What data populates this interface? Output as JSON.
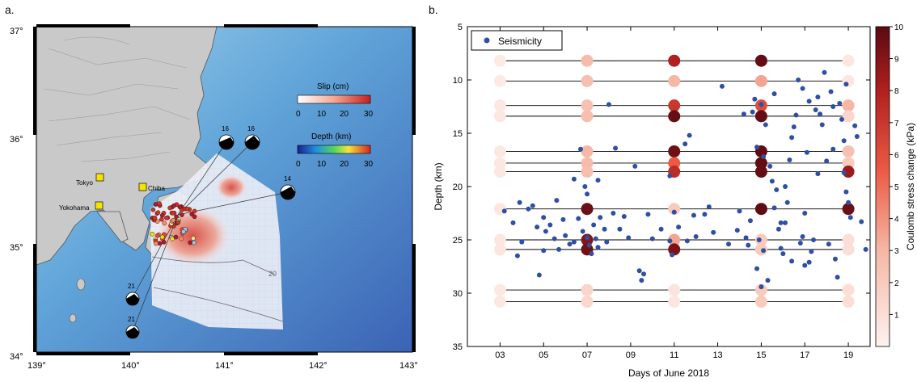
{
  "panel_a": {
    "label": "a.",
    "lon_ticks": [
      "139°",
      "140°",
      "141°",
      "142°",
      "143°"
    ],
    "lat_ticks": [
      "37°",
      "36°",
      "35°",
      "34°"
    ],
    "slip_legend": {
      "title": "Slip (cm)",
      "ticks": [
        "0",
        "10",
        "20",
        "30"
      ]
    },
    "depth_legend": {
      "title": "Depth (km)",
      "ticks": [
        "0",
        "10",
        "20",
        "30"
      ]
    },
    "cities": [
      "Tokyo",
      "Chiba",
      "Yokohama"
    ],
    "mechanism_labels": [
      "16",
      "16",
      "14",
      "21",
      "21"
    ],
    "contour_label": "20"
  },
  "panel_b": {
    "label": "b.",
    "legend_label": "Seismicity",
    "colorbar_label": "Coulomb stress change (kPa)",
    "colorbar_ticks": [
      "1",
      "2",
      "3",
      "4",
      "5",
      "6",
      "7",
      "8",
      "9",
      "10"
    ],
    "colors": {
      "low": "#fbe9e4",
      "mid": "#f0725a",
      "high": "#6a0d14",
      "dots": "#2f4fa3"
    }
  },
  "chart_data": {
    "type": "scatter",
    "xlabel": "Days of June 2018",
    "ylabel": "Depth (km)",
    "xlim": [
      1.5,
      20
    ],
    "ylim": [
      35,
      5
    ],
    "x_ticks": [
      "03",
      "05",
      "07",
      "09",
      "11",
      "13",
      "15",
      "17",
      "19"
    ],
    "y_ticks": [
      "5",
      "10",
      "15",
      "20",
      "25",
      "30",
      "35"
    ],
    "clim": [
      0,
      10
    ],
    "fault_depths": [
      8.2,
      10.1,
      12.4,
      13.4,
      16.7,
      17.8,
      18.6,
      22.1,
      25.0,
      25.9,
      29.7,
      30.8
    ],
    "stress_series": [
      {
        "day": 3,
        "values": [
          0.4,
          0.4,
          0.5,
          0.5,
          0.5,
          0.5,
          0.5,
          0.6,
          0.6,
          0.6,
          0.5,
          0.5
        ]
      },
      {
        "day": 7,
        "values": [
          2.8,
          2.6,
          2.5,
          2.6,
          3.0,
          2.8,
          2.6,
          9.6,
          9.0,
          9.5,
          1.5,
          1.4
        ]
      },
      {
        "day": 11,
        "values": [
          8.0,
          3.0,
          7.0,
          9.7,
          9.5,
          5.5,
          7.5,
          2.0,
          3.5,
          9.2,
          0.7,
          0.6
        ]
      },
      {
        "day": 15,
        "values": [
          9.8,
          3.5,
          6.0,
          9.8,
          9.8,
          9.8,
          9.7,
          9.9,
          2.0,
          2.0,
          2.0,
          2.0
        ]
      },
      {
        "day": 19,
        "values": [
          0.6,
          0.6,
          3.0,
          1.5,
          2.5,
          2.0,
          8.5,
          9.6,
          1.0,
          1.0,
          1.0,
          1.0
        ]
      }
    ],
    "seismicity": {
      "name": "Seismicity",
      "points": [
        [
          2.3,
          6.0
        ],
        [
          2.2,
          7.0
        ],
        [
          2.6,
          6.5
        ],
        [
          3.2,
          22.3
        ],
        [
          3.6,
          23.4
        ],
        [
          3.9,
          21.5
        ],
        [
          4.0,
          25.2
        ],
        [
          3.8,
          26.5
        ],
        [
          4.3,
          22.1
        ],
        [
          4.5,
          21.8
        ],
        [
          4.7,
          23.8
        ],
        [
          5.0,
          22.9
        ],
        [
          5.1,
          24.2
        ],
        [
          5.3,
          23.6
        ],
        [
          5.0,
          26.0
        ],
        [
          5.5,
          24.9
        ],
        [
          5.6,
          21.3
        ],
        [
          5.9,
          23.1
        ],
        [
          6.0,
          24.6
        ],
        [
          6.2,
          25.4
        ],
        [
          6.4,
          19.3
        ],
        [
          6.6,
          23.0
        ],
        [
          6.8,
          24.2
        ],
        [
          6.9,
          20.0
        ],
        [
          7.0,
          24.8
        ],
        [
          7.1,
          25.5
        ],
        [
          7.2,
          26.3
        ],
        [
          7.3,
          23.6
        ],
        [
          7.4,
          24.9
        ],
        [
          7.5,
          25.7
        ],
        [
          7.6,
          22.9
        ],
        [
          7.8,
          24.0
        ],
        [
          7.9,
          25.2
        ],
        [
          8.0,
          12.3
        ],
        [
          8.2,
          22.5
        ],
        [
          8.5,
          24.0
        ],
        [
          6.7,
          16.5
        ],
        [
          7.5,
          19.4
        ],
        [
          7.0,
          20.7
        ],
        [
          9.4,
          27.9
        ],
        [
          9.6,
          28.2
        ],
        [
          9.5,
          28.8
        ],
        [
          9.8,
          22.6
        ],
        [
          10.0,
          24.9
        ],
        [
          10.4,
          24.0
        ],
        [
          10.8,
          25.1
        ],
        [
          11.0,
          22.4
        ],
        [
          11.2,
          23.8
        ],
        [
          11.5,
          16.0
        ],
        [
          11.7,
          15.2
        ],
        [
          11.6,
          25.1
        ],
        [
          12.4,
          22.6
        ],
        [
          12.8,
          24.3
        ],
        [
          13.2,
          10.6
        ],
        [
          13.5,
          25.4
        ],
        [
          14.0,
          22.3
        ],
        [
          14.3,
          24.8
        ],
        [
          14.5,
          23.2
        ],
        [
          14.6,
          13.0
        ],
        [
          14.7,
          11.8
        ],
        [
          14.8,
          16.3
        ],
        [
          15.0,
          12.3
        ],
        [
          15.2,
          14.2
        ],
        [
          15.4,
          18.1
        ],
        [
          15.5,
          19.5
        ],
        [
          15.6,
          22.0
        ],
        [
          15.7,
          20.3
        ],
        [
          15.8,
          24.0
        ],
        [
          15.9,
          25.8
        ],
        [
          16.0,
          26.3
        ],
        [
          16.1,
          23.4
        ],
        [
          16.2,
          21.5
        ],
        [
          16.3,
          17.5
        ],
        [
          16.4,
          15.4
        ],
        [
          16.5,
          14.4
        ],
        [
          16.6,
          13.3
        ],
        [
          16.7,
          10.0
        ],
        [
          16.8,
          25.3
        ],
        [
          16.9,
          24.7
        ],
        [
          17.0,
          22.5
        ],
        [
          17.1,
          16.8
        ],
        [
          17.2,
          27.1
        ],
        [
          17.3,
          26.1
        ],
        [
          17.4,
          25.0
        ],
        [
          17.5,
          12.8
        ],
        [
          17.6,
          11.6
        ],
        [
          17.7,
          13.2
        ],
        [
          17.8,
          14.2
        ],
        [
          17.9,
          9.3
        ],
        [
          18.0,
          17.6
        ],
        [
          18.1,
          25.4
        ],
        [
          18.2,
          11.1
        ],
        [
          18.3,
          16.5
        ],
        [
          18.4,
          26.8
        ],
        [
          18.5,
          28.5
        ],
        [
          18.6,
          12.2
        ],
        [
          18.7,
          13.7
        ],
        [
          18.8,
          15.7
        ],
        [
          18.9,
          20.5
        ],
        [
          19.0,
          21.5
        ],
        [
          19.1,
          22.9
        ],
        [
          19.3,
          14.3
        ],
        [
          19.4,
          15.3
        ],
        [
          19.6,
          23.3
        ],
        [
          19.8,
          25.9
        ],
        [
          14.8,
          27.7
        ],
        [
          15.0,
          29.4
        ],
        [
          15.3,
          28.8
        ],
        [
          14.9,
          25.0
        ],
        [
          15.1,
          26.0
        ],
        [
          16.4,
          27.0
        ],
        [
          17.0,
          27.4
        ],
        [
          15.9,
          23.4
        ],
        [
          14.4,
          25.5
        ],
        [
          13.9,
          24.1
        ],
        [
          12.0,
          24.7
        ],
        [
          11.9,
          22.7
        ],
        [
          10.9,
          26.4
        ],
        [
          8.9,
          24.8
        ],
        [
          8.7,
          22.8
        ],
        [
          6.4,
          25.2
        ],
        [
          5.7,
          25.9
        ],
        [
          4.8,
          28.3
        ],
        [
          9.2,
          18.1
        ],
        [
          8.3,
          16.4
        ],
        [
          10.8,
          19.0
        ],
        [
          12.6,
          21.9
        ],
        [
          16.1,
          20.0
        ],
        [
          17.6,
          18.8
        ],
        [
          18.8,
          18.7
        ],
        [
          15.6,
          11.3
        ],
        [
          16.9,
          10.8
        ],
        [
          17.2,
          12.0
        ],
        [
          18.3,
          12.5
        ],
        [
          18.9,
          10.4
        ],
        [
          14.2,
          13.2
        ],
        [
          15.1,
          17.2
        ]
      ]
    }
  }
}
